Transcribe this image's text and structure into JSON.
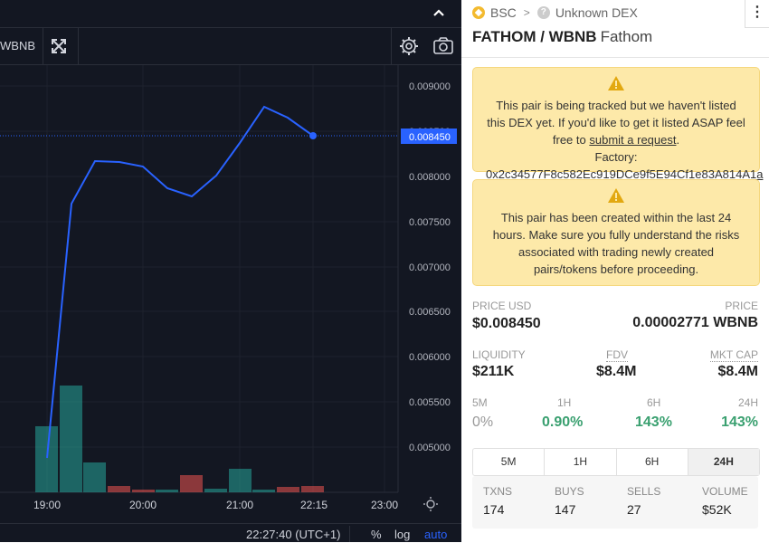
{
  "chart": {
    "symbol_fragment": "WBNB",
    "price_levels": [
      "0.009000",
      "0.008500",
      "0.008000",
      "0.007500",
      "0.007000",
      "0.006500",
      "0.006000",
      "0.005500",
      "0.005000"
    ],
    "current_price_label": "0.008450",
    "time_labels": [
      "19:00",
      "20:00",
      "21:00",
      "22:15",
      "23:00"
    ],
    "clock": "22:27:40 (UTC+1)",
    "scale_percent": "%",
    "scale_log": "log",
    "scale_auto": "auto",
    "colors": {
      "line": "#2962ff",
      "up_volume": "#26a69a",
      "down_volume": "#ef5350",
      "price_tag": "#2962ff"
    }
  },
  "header": {
    "chain": "BSC",
    "dex": "Unknown DEX",
    "pair": "FATHOM / WBNB",
    "token_name": "Fathom",
    "menu_glyph": "⋮"
  },
  "warning1": {
    "text": "This pair is being tracked but we haven't listed this DEX yet. If you'd like to get it listed ASAP feel free to",
    "link": "submit a request",
    "suffix": ".",
    "factory_label": "Factory:",
    "factory_address": "0x2c34577F8c582Ec919DCe9f5E94Cf1e83A814A1a"
  },
  "warning2": {
    "text": "This pair has been created within the last 24 hours. Make sure you fully understand the risks associated with trading newly created pairs/tokens before proceeding."
  },
  "stats": {
    "price_usd_label": "PRICE USD",
    "price_usd": "$0.008450",
    "price_label": "PRICE",
    "price": "0.00002771 WBNB",
    "liquidity_label": "LIQUIDITY",
    "liquidity": "$211K",
    "fdv_label": "FDV",
    "fdv": "$8.4M",
    "mktcap_label": "MKT CAP",
    "mktcap": "$8.4M"
  },
  "changes": [
    {
      "label": "5M",
      "value": "0%"
    },
    {
      "label": "1H",
      "value": "0.90%"
    },
    {
      "label": "6H",
      "value": "143%"
    },
    {
      "label": "24H",
      "value": "143%"
    }
  ],
  "tabs": [
    "5M",
    "1H",
    "6H",
    "24H"
  ],
  "txns": {
    "txns_label": "TXNS",
    "txns": "174",
    "buys_label": "BUYS",
    "buys": "147",
    "sells_label": "SELLS",
    "sells": "27",
    "volume_label": "VOLUME",
    "volume": "$52K"
  }
}
